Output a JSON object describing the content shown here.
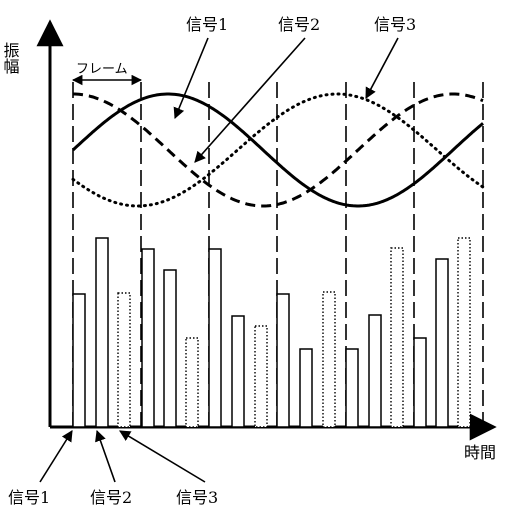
{
  "axes": {
    "y_label": "振幅",
    "x_label": "時間"
  },
  "frame_label": "フレーム",
  "curve_labels": [
    "信号1",
    "信号2",
    "信号3"
  ],
  "bar_labels": [
    "信号1",
    "信号2",
    "信号3"
  ],
  "colors": {
    "ink": "#000000",
    "background": "#ffffff"
  }
}
